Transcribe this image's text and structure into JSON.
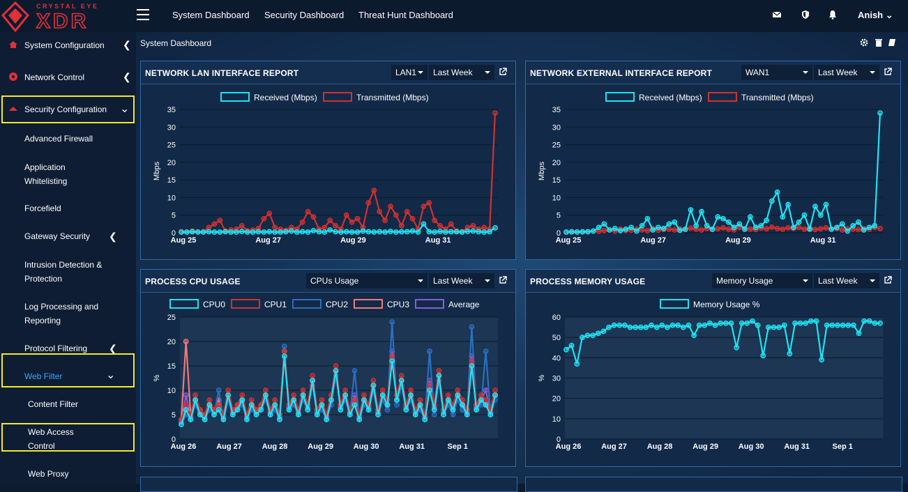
{
  "brand": {
    "small": "CRYSTAL EYE",
    "large": "XDR"
  },
  "topnav": [
    "System Dashboard",
    "Security Dashboard",
    "Threat Hunt Dashboard"
  ],
  "user": "Anish",
  "sidebar": {
    "main": [
      {
        "label": "System Configuration",
        "icon": "home-icon"
      },
      {
        "label": "Network Control",
        "icon": "network-icon"
      },
      {
        "label": "Security Configuration",
        "icon": "shield-icon"
      }
    ],
    "sub": [
      "Advanced Firewall",
      "Application Whitelisting",
      "Forcefield",
      "Gateway Security",
      "Intrusion Detection & Protection",
      "Log Processing and Reporting",
      "Protocol Filtering",
      "Web Filter"
    ],
    "subsub": [
      "Content Filter",
      "Web Access Control",
      "Web Proxy"
    ]
  },
  "breadcrumb": "System Dashboard",
  "panels": [
    {
      "title": "NETWORK LAN INTERFACE REPORT",
      "sel1": "LAN1",
      "sel2": "Last Week"
    },
    {
      "title": "NETWORK EXTERNAL INTERFACE REPORT",
      "sel1": "WAN1",
      "sel2": "Last Week"
    },
    {
      "title": "PROCESS CPU USAGE",
      "sel1": "CPUs Usage",
      "sel2": "Last Week"
    },
    {
      "title": "PROCESS MEMORY USAGE",
      "sel1": "Memory Usage",
      "sel2": "Last Week"
    }
  ],
  "colors": {
    "cyan": "#1ee3f2",
    "red": "#d23030",
    "blue": "#2a6fc0",
    "salmon": "#f07a7a",
    "purple": "#8a5ad8",
    "highlight": "#f2ea2a",
    "brand": "#e0303a"
  },
  "chart_data": [
    {
      "type": "line",
      "title": "NETWORK LAN INTERFACE REPORT",
      "ylabel": "Mbps",
      "ylim": [
        0,
        35
      ],
      "yticks": [
        0,
        5,
        10,
        15,
        20,
        25,
        30,
        35
      ],
      "xticks": [
        "Aug 25",
        "Aug 27",
        "Aug 29",
        "Aug 31"
      ],
      "series": [
        {
          "name": "Received (Mbps)",
          "color": "#1ee3f2",
          "values": [
            0.2,
            0.2,
            0.3,
            0.2,
            0.2,
            0.3,
            0.2,
            0.2,
            0.3,
            0.2,
            0.2,
            0.4,
            0.2,
            0.2,
            0.3,
            0.2,
            0.3,
            0.2,
            0.2,
            0.3,
            0.5,
            0.2,
            0.3,
            0.2,
            0.6,
            0.3,
            0.2,
            0.8,
            0.3,
            0.2,
            0.3,
            0.2,
            0.2,
            0.5,
            0.3,
            0.2,
            0.3,
            0.2,
            0.4,
            0.2,
            0.3,
            0.3,
            0.5,
            0.2,
            2.5,
            0.3,
            0.2,
            0.4,
            0.2,
            0.3,
            0.3,
            0.2,
            0.4,
            0.5,
            0.3,
            0.2,
            0.3,
            1.4
          ]
        },
        {
          "name": "Transmitted (Mbps)",
          "color": "#d23030",
          "values": [
            0.3,
            0.2,
            0.5,
            0.3,
            0.3,
            1.5,
            2.5,
            3.5,
            0.5,
            0.8,
            1.0,
            2.0,
            0.6,
            0.8,
            1.2,
            4.0,
            5.5,
            1.5,
            1.0,
            0.7,
            1.5,
            1.0,
            3.0,
            6.0,
            4.5,
            1.0,
            1.5,
            3.5,
            2.0,
            1.0,
            5.0,
            3.0,
            4.0,
            1.5,
            8.5,
            12.0,
            6.0,
            3.5,
            7.5,
            5.0,
            2.0,
            6.0,
            4.0,
            1.0,
            7.5,
            8.5,
            3.5,
            2.0,
            1.0,
            2.5,
            0.5,
            0.3,
            1.5,
            2.0,
            1.0,
            1.5,
            1.0,
            34.0
          ]
        }
      ]
    },
    {
      "type": "line",
      "title": "NETWORK EXTERNAL INTERFACE REPORT",
      "ylabel": "Mbps",
      "ylim": [
        0,
        35
      ],
      "yticks": [
        0,
        5,
        10,
        15,
        20,
        25,
        30,
        35
      ],
      "xticks": [
        "Aug 25",
        "Aug 27",
        "Aug 29",
        "Aug 31"
      ],
      "series": [
        {
          "name": "Received (Mbps)",
          "color": "#1ee3f2",
          "values": [
            0.2,
            0.3,
            0.2,
            0.3,
            0.3,
            0.5,
            1.5,
            2.5,
            0.8,
            1.2,
            0.6,
            1.0,
            1.5,
            0.5,
            2.0,
            4.0,
            0.8,
            1.5,
            1.2,
            2.5,
            3.0,
            0.7,
            1.0,
            6.5,
            2.0,
            6.0,
            2.0,
            1.0,
            4.5,
            4.0,
            3.0,
            1.5,
            2.5,
            1.0,
            4.5,
            1.5,
            2.0,
            3.5,
            9.0,
            11.5,
            4.5,
            8.0,
            1.5,
            3.0,
            5.0,
            1.0,
            7.5,
            5.0,
            8.0,
            1.0,
            1.5,
            2.5,
            0.5,
            2.0,
            3.0,
            0.8,
            1.5,
            2.0,
            34.0
          ]
        },
        {
          "name": "Transmitted (Mbps)",
          "color": "#d23030",
          "values": [
            0.2,
            0.2,
            0.3,
            0.2,
            0.3,
            0.5,
            0.4,
            0.6,
            0.8,
            0.5,
            1.0,
            0.6,
            0.7,
            1.0,
            0.8,
            0.6,
            1.2,
            0.7,
            0.9,
            1.0,
            0.8,
            1.1,
            0.9,
            1.3,
            1.0,
            0.8,
            1.2,
            0.9,
            1.1,
            1.4,
            1.0,
            0.8,
            1.5,
            1.2,
            1.0,
            0.9,
            1.3,
            1.1,
            1.6,
            1.2,
            1.0,
            1.4,
            1.2,
            1.5,
            1.0,
            1.3,
            0.9,
            1.1,
            1.4,
            1.0,
            1.2,
            0.8,
            1.1,
            1.0,
            0.9,
            1.2,
            1.0,
            1.5,
            1.2
          ]
        }
      ]
    },
    {
      "type": "line",
      "title": "PROCESS CPU USAGE",
      "ylabel": "%",
      "ylim": [
        0,
        25
      ],
      "yticks": [
        0,
        5,
        10,
        15,
        20,
        25
      ],
      "xticks": [
        "Aug 26",
        "Aug 27",
        "Aug 28",
        "Aug 29",
        "Aug 30",
        "Aug 31",
        "Sep 1"
      ],
      "series": [
        {
          "name": "CPU0",
          "color": "#1ee3f2",
          "values": [
            3,
            6,
            4,
            8,
            5,
            4,
            7,
            5,
            6,
            4,
            9,
            5,
            6,
            8,
            4,
            7,
            5,
            6,
            9,
            5,
            7,
            4,
            17,
            6,
            8,
            5,
            9,
            6,
            12,
            5,
            7,
            4,
            8,
            14,
            6,
            9,
            5,
            7,
            4,
            8,
            6,
            11,
            5,
            9,
            7,
            16,
            8,
            12,
            6,
            9,
            5,
            7,
            4,
            10,
            6,
            13,
            5,
            8,
            6,
            9,
            7,
            5,
            15,
            6,
            8,
            7,
            5,
            9
          ]
        },
        {
          "name": "CPU1",
          "color": "#d23030",
          "values": [
            4,
            7,
            5,
            9,
            6,
            5,
            8,
            6,
            7,
            5,
            10,
            6,
            7,
            9,
            5,
            8,
            6,
            7,
            10,
            6,
            8,
            5,
            18,
            7,
            9,
            6,
            10,
            7,
            13,
            6,
            8,
            5,
            9,
            15,
            7,
            10,
            6,
            8,
            5,
            9,
            7,
            12,
            6,
            10,
            8,
            17,
            9,
            13,
            7,
            10,
            6,
            8,
            5,
            11,
            7,
            14,
            6,
            9,
            7,
            10,
            8,
            6,
            16,
            7,
            9,
            8,
            6,
            10
          ]
        },
        {
          "name": "CPU2",
          "color": "#2a6fc0",
          "values": [
            3,
            5,
            4,
            7,
            5,
            4,
            6,
            5,
            10,
            4,
            8,
            5,
            6,
            7,
            4,
            6,
            5,
            6,
            8,
            5,
            6,
            4,
            19,
            6,
            7,
            5,
            8,
            6,
            11,
            5,
            6,
            4,
            7,
            13,
            6,
            8,
            5,
            14,
            4,
            7,
            6,
            10,
            5,
            8,
            6,
            24,
            7,
            11,
            6,
            8,
            5,
            6,
            4,
            18,
            5,
            12,
            5,
            7,
            5,
            8,
            6,
            5,
            23,
            6,
            7,
            18,
            5,
            8
          ]
        },
        {
          "name": "CPU3",
          "color": "#f07a7a",
          "values": [
            4,
            20,
            5,
            8,
            6,
            5,
            7,
            6,
            8,
            5,
            9,
            6,
            7,
            8,
            5,
            7,
            6,
            7,
            9,
            6,
            7,
            5,
            18,
            7,
            8,
            6,
            9,
            7,
            12,
            6,
            7,
            5,
            8,
            14,
            7,
            9,
            6,
            8,
            5,
            8,
            7,
            11,
            6,
            9,
            7,
            17,
            8,
            12,
            7,
            9,
            6,
            7,
            5,
            10,
            7,
            13,
            6,
            8,
            7,
            9,
            7,
            6,
            15,
            7,
            8,
            7,
            6,
            9
          ]
        },
        {
          "name": "Average",
          "color": "#8a5ad8",
          "values": [
            3.5,
            9,
            4.5,
            8,
            5.5,
            4.5,
            7,
            5.5,
            7.5,
            4.5,
            9,
            5.5,
            6.5,
            8,
            4.5,
            7,
            5.5,
            6.5,
            9,
            5.5,
            7,
            4.5,
            18,
            6.5,
            8,
            5.5,
            9,
            6.5,
            12,
            5.5,
            7,
            4.5,
            8,
            14,
            6.5,
            9,
            5.5,
            9,
            4.5,
            8,
            6.5,
            11,
            5.5,
            9,
            7,
            18,
            8,
            12,
            6.5,
            9,
            5.5,
            7,
            4.5,
            12,
            6.5,
            13,
            5.5,
            8,
            6.5,
            9,
            7,
            5.5,
            17,
            6.5,
            8,
            10,
            5.5,
            9
          ]
        }
      ]
    },
    {
      "type": "line",
      "title": "PROCESS MEMORY USAGE",
      "ylabel": "%",
      "ylim": [
        0,
        60
      ],
      "yticks": [
        0,
        10,
        20,
        30,
        40,
        50,
        60
      ],
      "xticks": [
        "Aug 26",
        "Aug 27",
        "Aug 28",
        "Aug 29",
        "Aug 30",
        "Aug 31",
        "Sep 1"
      ],
      "series": [
        {
          "name": "Memory Usage %",
          "color": "#1ee3f2",
          "values": [
            44,
            46,
            37,
            50,
            51,
            51,
            52,
            53,
            55,
            56,
            56,
            56,
            55,
            55,
            55,
            55,
            56,
            55,
            56,
            55,
            56,
            56,
            55,
            56,
            51,
            56,
            56,
            57,
            56,
            57,
            57,
            57,
            45,
            57,
            57,
            58,
            56,
            41,
            55,
            55,
            55,
            56,
            42,
            57,
            57,
            57,
            58,
            58,
            39,
            56,
            56,
            56,
            56,
            56,
            56,
            52,
            58,
            58,
            57,
            57
          ]
        }
      ]
    }
  ]
}
